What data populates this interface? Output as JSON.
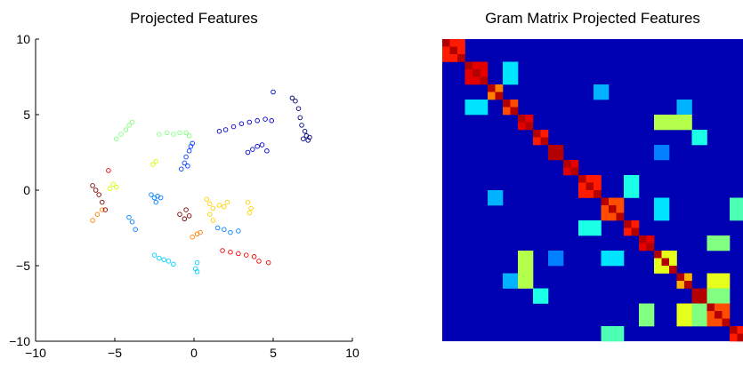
{
  "chart_data": [
    {
      "type": "scatter",
      "title": "Projected Features",
      "xlabel": "",
      "ylabel": "",
      "xlim": [
        -10,
        10
      ],
      "ylim": [
        -10,
        10
      ],
      "xticks": [
        -10,
        -5,
        0,
        5,
        10
      ],
      "yticks": [
        -10,
        -5,
        0,
        5,
        10
      ],
      "xtick_labels": [
        "−10",
        "−5",
        "0",
        "5",
        "10"
      ],
      "ytick_labels": [
        "−10",
        "−5",
        "0",
        "5",
        "10"
      ],
      "marker": "open circle",
      "colormap": "jet",
      "grid": false,
      "legend": "none",
      "clusters": [
        {
          "color": "#00007F",
          "points": [
            [
              6.2,
              6.1
            ],
            [
              6.4,
              5.9
            ],
            [
              6.6,
              5.4
            ],
            [
              6.7,
              4.8
            ],
            [
              6.8,
              4.3
            ],
            [
              7.0,
              3.9
            ],
            [
              7.1,
              3.6
            ],
            [
              7.2,
              3.3
            ],
            [
              7.3,
              3.5
            ],
            [
              6.9,
              3.4
            ]
          ]
        },
        {
          "color": "#0000D0",
          "points": [
            [
              1.6,
              3.9
            ],
            [
              2.0,
              4.0
            ],
            [
              2.5,
              4.2
            ],
            [
              3.0,
              4.4
            ],
            [
              3.5,
              4.5
            ],
            [
              4.0,
              4.6
            ],
            [
              4.5,
              4.7
            ],
            [
              4.9,
              4.6
            ],
            [
              5.0,
              6.5
            ],
            [
              3.4,
              2.5
            ],
            [
              3.7,
              2.7
            ],
            [
              4.0,
              2.9
            ],
            [
              4.3,
              3.0
            ],
            [
              4.6,
              2.6
            ]
          ]
        },
        {
          "color": "#0040FF",
          "points": [
            [
              -0.4,
              1.6
            ],
            [
              -0.6,
              1.8
            ],
            [
              -0.5,
              2.2
            ],
            [
              -0.3,
              2.6
            ],
            [
              -0.8,
              1.4
            ],
            [
              -0.2,
              2.9
            ],
            [
              -0.1,
              3.1
            ]
          ]
        },
        {
          "color": "#0080FF",
          "points": [
            [
              -2.7,
              -0.3
            ],
            [
              -2.5,
              -0.5
            ],
            [
              -2.3,
              -0.4
            ],
            [
              -2.4,
              -0.8
            ],
            [
              -2.1,
              -0.5
            ],
            [
              1.5,
              -2.5
            ],
            [
              1.9,
              -2.6
            ],
            [
              2.3,
              -2.8
            ],
            [
              2.8,
              -2.7
            ],
            [
              -4.1,
              -1.8
            ],
            [
              -3.9,
              -2.1
            ],
            [
              -3.7,
              -2.6
            ]
          ]
        },
        {
          "color": "#00D0FF",
          "points": [
            [
              -2.5,
              -4.3
            ],
            [
              -2.2,
              -4.5
            ],
            [
              -1.9,
              -4.6
            ],
            [
              -1.6,
              -4.7
            ],
            [
              -1.3,
              -4.9
            ],
            [
              0.2,
              -4.8
            ],
            [
              0.2,
              -5.4
            ],
            [
              0.1,
              -5.2
            ]
          ]
        },
        {
          "color": "#80FF80",
          "points": [
            [
              -4.9,
              3.4
            ],
            [
              -4.6,
              3.7
            ],
            [
              -4.3,
              4.0
            ],
            [
              -4.1,
              4.3
            ],
            [
              -3.9,
              4.5
            ],
            [
              -2.2,
              3.7
            ],
            [
              -1.7,
              3.8
            ],
            [
              -1.3,
              3.7
            ],
            [
              -0.9,
              3.8
            ],
            [
              -0.5,
              3.8
            ],
            [
              -0.3,
              3.6
            ]
          ]
        },
        {
          "color": "#D0FF00",
          "points": [
            [
              -5.3,
              0.1
            ],
            [
              -5.1,
              0.4
            ],
            [
              -4.9,
              0.2
            ],
            [
              -2.6,
              1.7
            ],
            [
              -2.4,
              1.9
            ]
          ]
        },
        {
          "color": "#FFD000",
          "points": [
            [
              0.8,
              -0.6
            ],
            [
              1.0,
              -0.9
            ],
            [
              1.2,
              -1.2
            ],
            [
              1.0,
              -1.6
            ],
            [
              1.2,
              -2.0
            ],
            [
              1.6,
              -1.0
            ],
            [
              1.9,
              -1.1
            ],
            [
              2.1,
              -0.8
            ],
            [
              3.4,
              -0.8
            ],
            [
              3.6,
              -1.2
            ],
            [
              3.5,
              -1.5
            ]
          ]
        },
        {
          "color": "#FF8000",
          "points": [
            [
              -6.4,
              -2.0
            ],
            [
              -6.1,
              -1.6
            ],
            [
              -5.8,
              -1.3
            ],
            [
              -0.1,
              -3.1
            ],
            [
              0.2,
              -2.9
            ],
            [
              0.4,
              -2.8
            ]
          ]
        },
        {
          "color": "#F00000",
          "points": [
            [
              1.8,
              -4.0
            ],
            [
              2.3,
              -4.1
            ],
            [
              2.8,
              -4.2
            ],
            [
              3.3,
              -4.3
            ],
            [
              3.8,
              -4.4
            ],
            [
              4.1,
              -4.7
            ],
            [
              4.7,
              -4.8
            ],
            [
              -5.4,
              1.3
            ]
          ]
        },
        {
          "color": "#7F0000",
          "points": [
            [
              -6.4,
              0.3
            ],
            [
              -6.2,
              0.0
            ],
            [
              -6.0,
              -0.3
            ],
            [
              -5.8,
              -0.8
            ],
            [
              -5.6,
              -1.3
            ],
            [
              -0.9,
              -1.6
            ],
            [
              -0.6,
              -1.9
            ],
            [
              -0.3,
              -1.7
            ],
            [
              -0.5,
              -1.3
            ]
          ]
        }
      ]
    },
    {
      "type": "heatmap",
      "title": "Gram Matrix Projected Features",
      "colormap": "jet",
      "n": 40,
      "background_value": 0.05,
      "diagonal_value": 0.95,
      "blocks": [
        [
          0,
          3,
          0.85
        ],
        [
          3,
          6,
          0.9
        ],
        [
          6,
          8,
          0.75
        ],
        [
          8,
          10,
          0.8
        ],
        [
          10,
          12,
          0.9
        ],
        [
          12,
          14,
          0.85
        ],
        [
          14,
          16,
          0.95
        ],
        [
          16,
          18,
          0.9
        ],
        [
          18,
          21,
          0.85
        ],
        [
          21,
          24,
          0.8
        ],
        [
          24,
          26,
          0.85
        ],
        [
          26,
          28,
          0.9
        ],
        [
          28,
          31,
          0.6
        ],
        [
          31,
          33,
          0.7
        ],
        [
          33,
          35,
          0.95
        ],
        [
          35,
          38,
          0.8
        ],
        [
          38,
          40,
          0.85
        ],
        [
          28,
          31,
          0.55
        ],
        [
          26,
          28,
          0.4
        ],
        [
          33,
          38,
          0.5
        ]
      ],
      "offdiag": [
        [
          10,
          12,
          28,
          33,
          0.55
        ],
        [
          28,
          33,
          10,
          12,
          0.55
        ],
        [
          3,
          6,
          8,
          10,
          0.35
        ],
        [
          8,
          10,
          3,
          6,
          0.35
        ],
        [
          18,
          21,
          24,
          26,
          0.4
        ],
        [
          24,
          26,
          18,
          21,
          0.4
        ],
        [
          31,
          33,
          35,
          38,
          0.6
        ],
        [
          35,
          38,
          31,
          33,
          0.6
        ],
        [
          12,
          14,
          33,
          35,
          0.4
        ],
        [
          33,
          35,
          12,
          14,
          0.4
        ],
        [
          6,
          8,
          20,
          22,
          0.3
        ],
        [
          20,
          22,
          6,
          8,
          0.3
        ],
        [
          28,
          30,
          21,
          24,
          0.35
        ],
        [
          21,
          24,
          28,
          30,
          0.35
        ],
        [
          14,
          16,
          28,
          30,
          0.25
        ],
        [
          28,
          30,
          14,
          16,
          0.25
        ],
        [
          8,
          10,
          31,
          33,
          0.3
        ],
        [
          31,
          33,
          8,
          10,
          0.3
        ],
        [
          21,
          24,
          38,
          40,
          0.45
        ],
        [
          38,
          40,
          21,
          24,
          0.45
        ],
        [
          35,
          38,
          26,
          28,
          0.5
        ],
        [
          26,
          28,
          35,
          38,
          0.5
        ]
      ]
    }
  ]
}
